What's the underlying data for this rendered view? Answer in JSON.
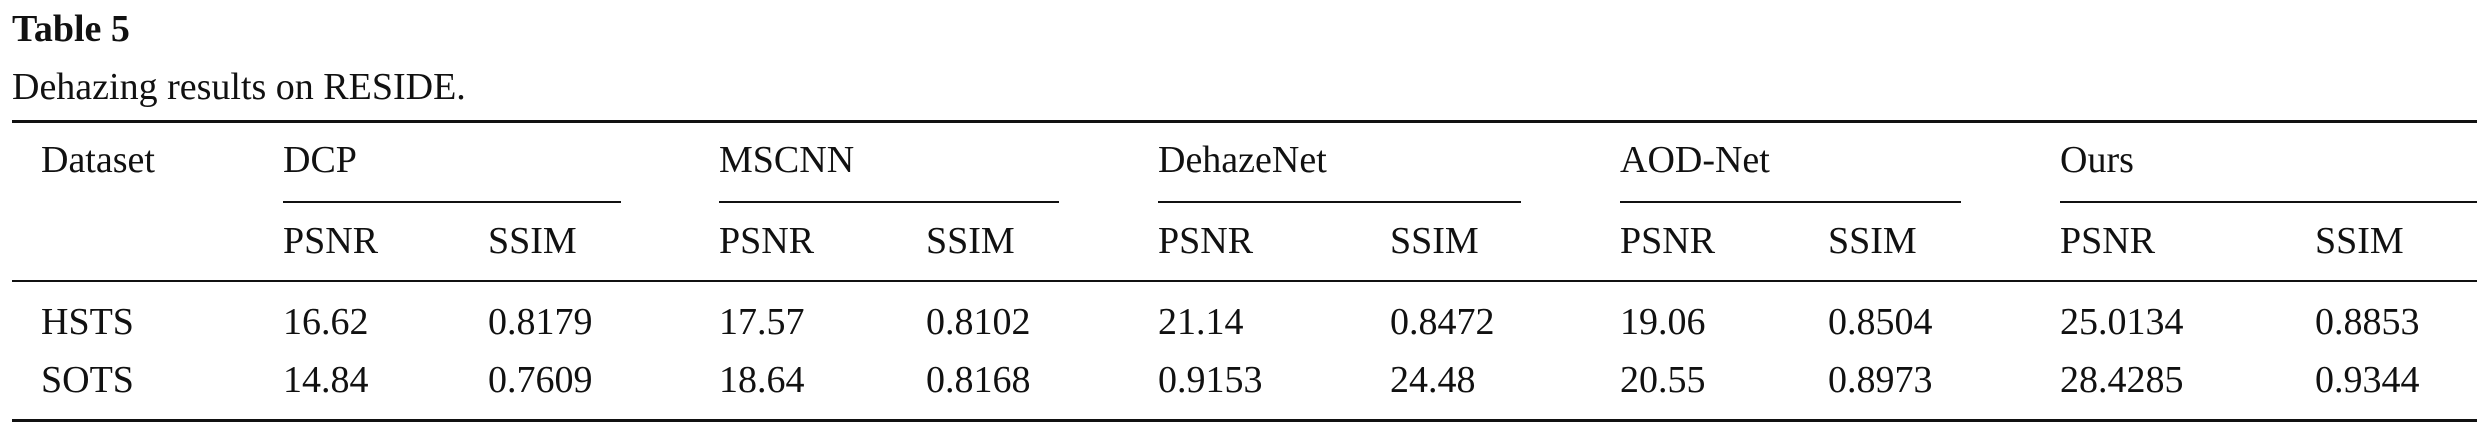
{
  "table": {
    "title": "Table 5",
    "caption": "Dehazing results on RESIDE.",
    "row_header": "Dataset",
    "groups": [
      "DCP",
      "MSCNN",
      "DehazeNet",
      "AOD-Net",
      "Ours"
    ],
    "subheaders": [
      "PSNR",
      "SSIM",
      "PSNR",
      "SSIM",
      "PSNR",
      "SSIM",
      "PSNR",
      "SSIM",
      "PSNR",
      "SSIM"
    ],
    "rows": [
      [
        "HSTS",
        "16.62",
        "0.8179",
        "17.57",
        "0.8102",
        "21.14",
        "0.8472",
        "19.06",
        "0.8504",
        "25.0134",
        "0.8853"
      ],
      [
        "SOTS",
        "14.84",
        "0.7609",
        "18.64",
        "0.8168",
        "0.9153",
        "24.48",
        "20.55",
        "0.8973",
        "28.4285",
        "0.9344"
      ]
    ]
  }
}
